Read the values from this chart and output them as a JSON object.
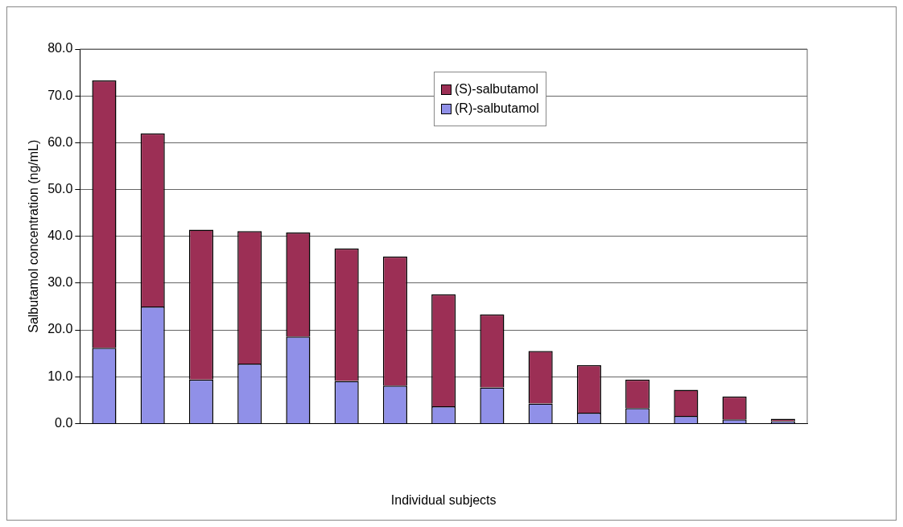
{
  "chart_data": {
    "type": "bar",
    "stacked": true,
    "xlabel": "Individual subjects",
    "ylabel": "Salbutamol concentration (ng/mL)",
    "categories": [
      null,
      null,
      null,
      null,
      null,
      null,
      null,
      null,
      null,
      null,
      null,
      null,
      null,
      null,
      null
    ],
    "series": [
      {
        "name": "(R)-salbutamol",
        "color": "#9090e8",
        "values": [
          16.2,
          25.0,
          9.4,
          12.8,
          18.6,
          9.1,
          8.1,
          3.7,
          7.7,
          4.3,
          2.3,
          3.3,
          1.6,
          0.9,
          0.5
        ]
      },
      {
        "name": "(S)-salbutamol",
        "color": "#9c2f55",
        "values": [
          57.1,
          37.0,
          32.0,
          28.3,
          22.2,
          28.3,
          27.6,
          23.9,
          15.6,
          11.2,
          10.2,
          6.1,
          5.6,
          4.9,
          0.5
        ]
      }
    ],
    "ylim": [
      0,
      80
    ],
    "yticks": [
      {
        "value": 0,
        "label": "0.0"
      },
      {
        "value": 10,
        "label": "10.0"
      },
      {
        "value": 20,
        "label": "20.0"
      },
      {
        "value": 30,
        "label": "30.0"
      },
      {
        "value": 40,
        "label": "40.0"
      },
      {
        "value": 50,
        "label": "50.0"
      },
      {
        "value": 60,
        "label": "60.0"
      },
      {
        "value": 70,
        "label": "70.0"
      },
      {
        "value": 80,
        "label": "80.0"
      }
    ],
    "grid": "y",
    "legend": "top"
  }
}
